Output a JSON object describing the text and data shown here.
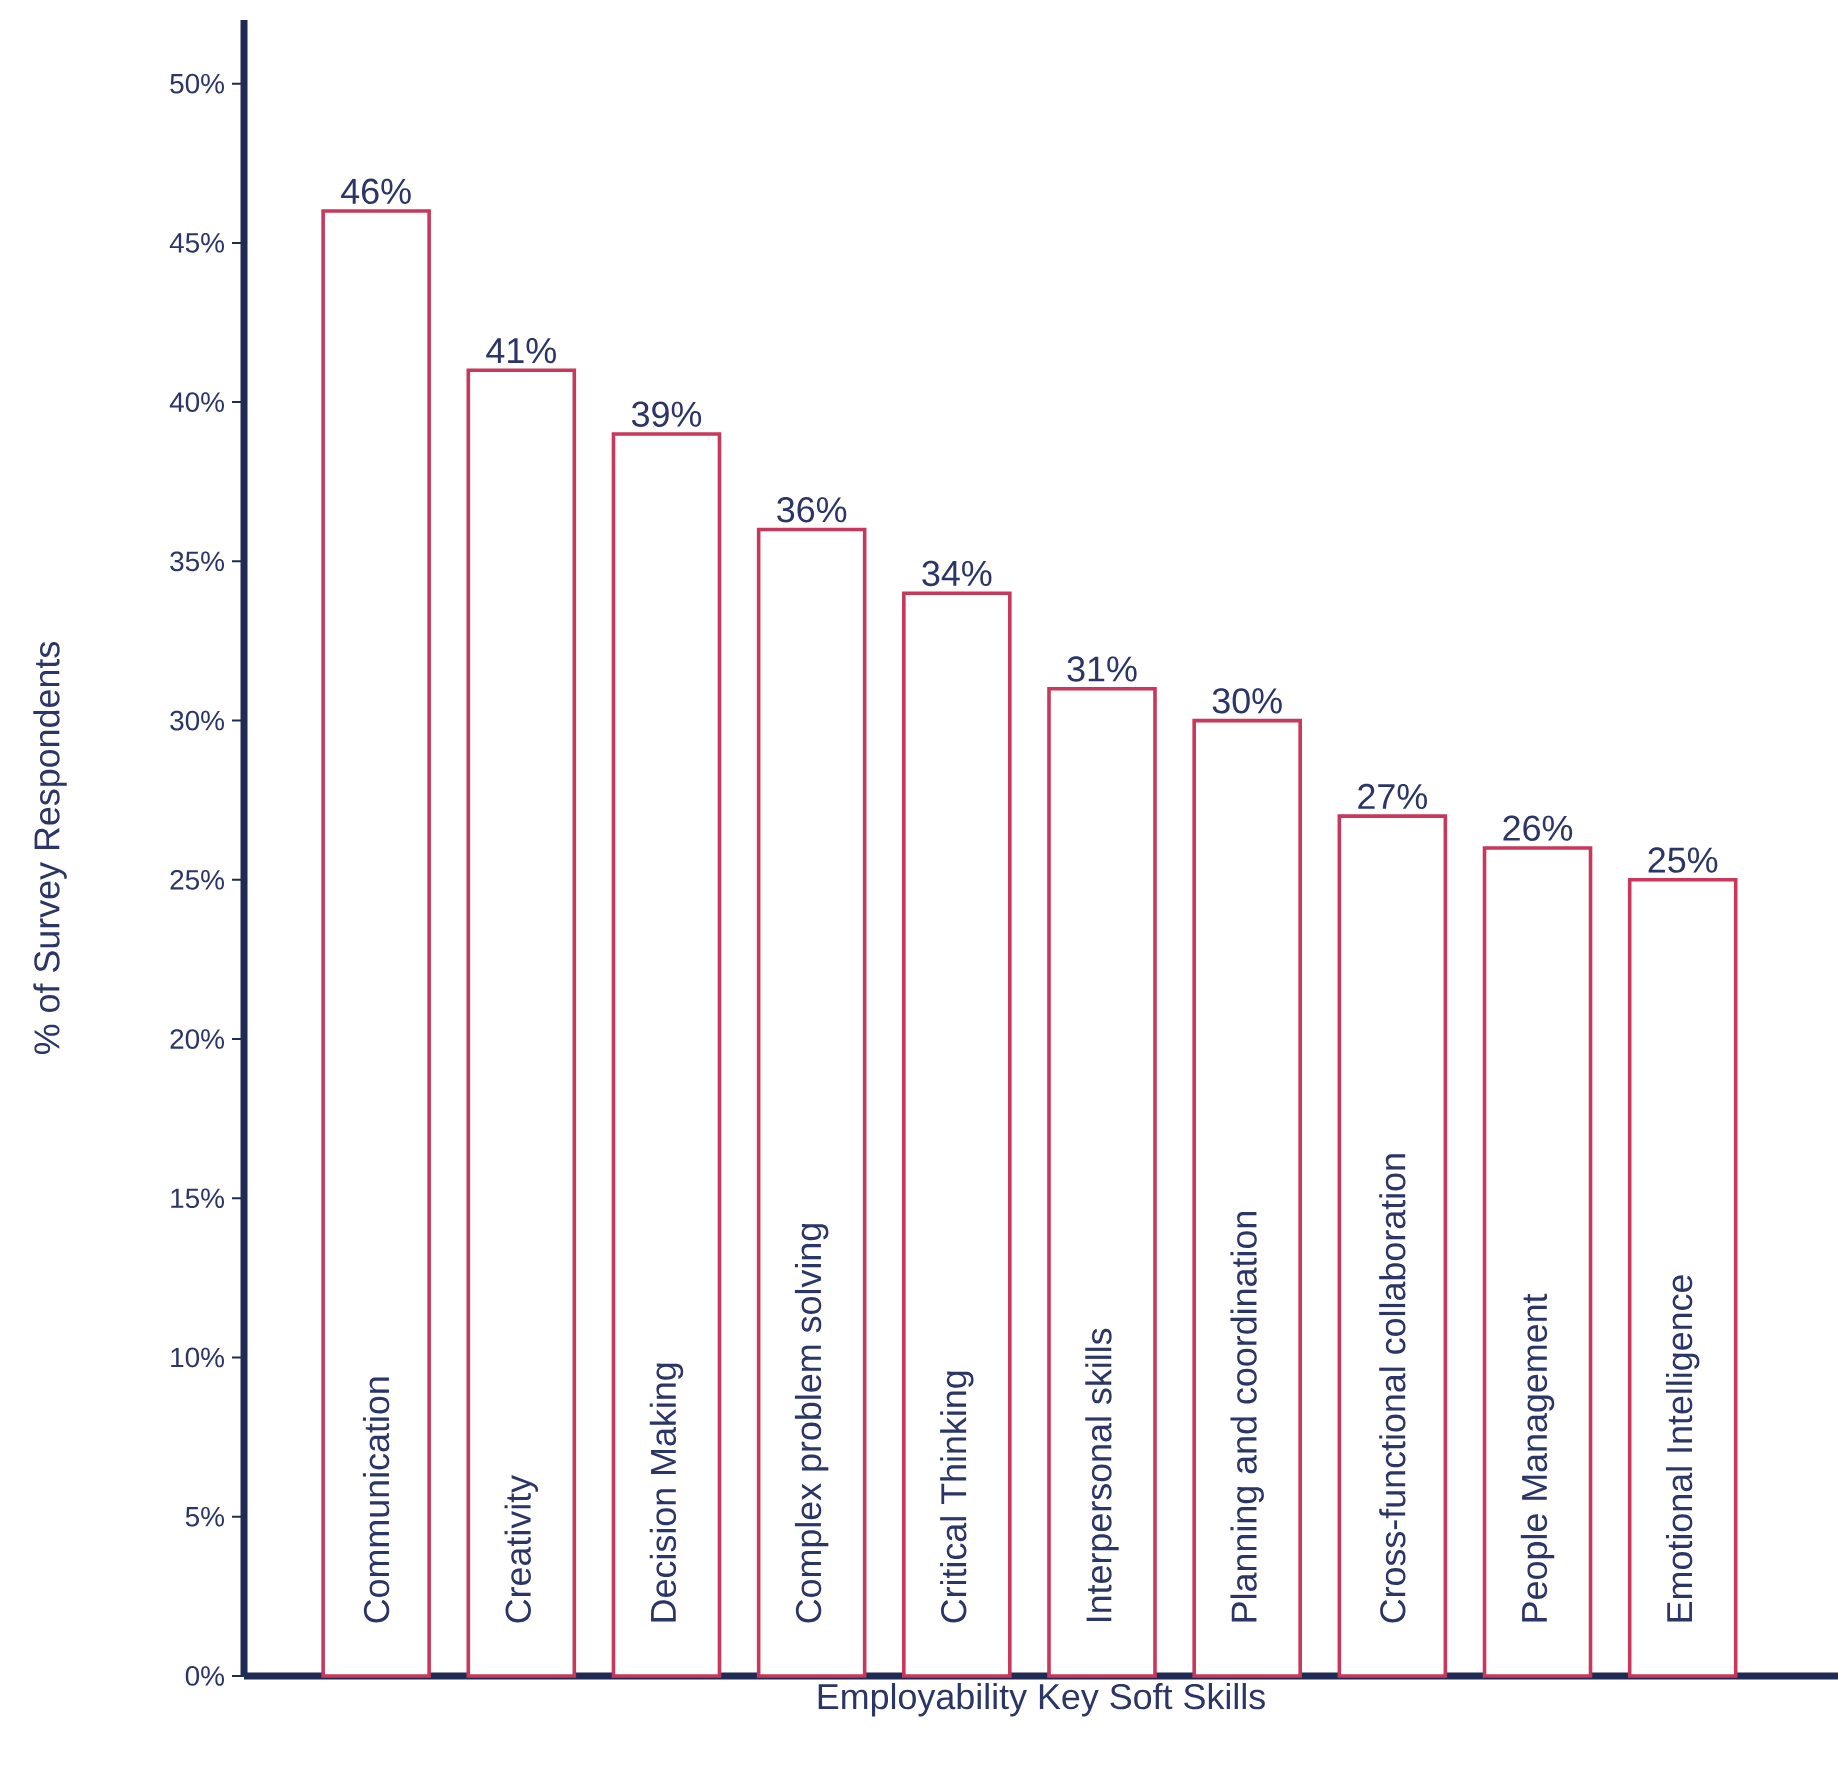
{
  "chart_data": {
    "type": "bar",
    "xlabel": "Employability Key Soft  Skills",
    "ylabel": "% of Survey Respondents",
    "categories": [
      "Communication",
      "Creativity",
      "Decision Making",
      "Complex problem solving",
      "Critical Thinking",
      "Interpersonal skills",
      "Planning and coordination",
      "Cross-functional collaboration",
      "People Management",
      "Emotional Intelligence"
    ],
    "values": [
      46,
      41,
      39,
      36,
      34,
      31,
      30,
      27,
      26,
      25
    ],
    "value_labels": [
      "46%",
      "41%",
      "39%",
      "36%",
      "34%",
      "31%",
      "30%",
      "27%",
      "26%",
      "25%"
    ],
    "color": "#c8385a",
    "ylim": [
      0,
      52
    ],
    "yticks": [
      {
        "value": 0,
        "label": "0%"
      },
      {
        "value": 5,
        "label": "5%"
      },
      {
        "value": 10,
        "label": "10%"
      },
      {
        "value": 15,
        "label": "15%"
      },
      {
        "value": 20,
        "label": "20%"
      },
      {
        "value": 25,
        "label": "25%"
      },
      {
        "value": 30,
        "label": "30%"
      },
      {
        "value": 35,
        "label": "35%"
      },
      {
        "value": 40,
        "label": "40%"
      },
      {
        "value": 45,
        "label": "45%"
      },
      {
        "value": 50,
        "label": "50%"
      }
    ],
    "grid": false
  }
}
